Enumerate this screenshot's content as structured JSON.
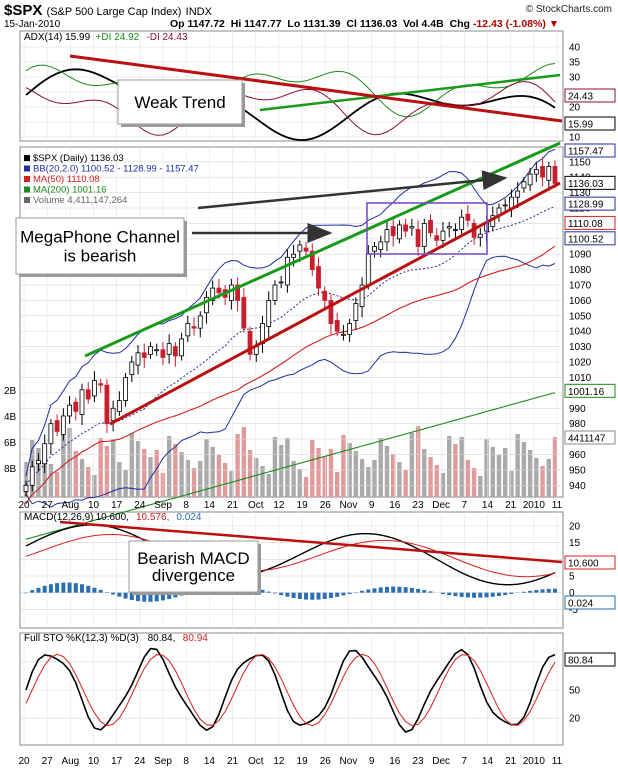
{
  "header": {
    "symbol": "$SPX",
    "name": "(S&P 500 Large Cap Index)",
    "exchange": "INDX",
    "date": "15-Jan-2010",
    "open_label": "Op",
    "open": "1147.72",
    "high_label": "Hi",
    "high": "1147.77",
    "low_label": "Lo",
    "low": "1131.39",
    "close_label": "Cl",
    "close": "1136.03",
    "vol_label": "Vol",
    "vol": "4.4B",
    "chg_label": "Chg",
    "chg": "-12.43 (-1.08%)",
    "copyright": "© StockCharts.com"
  },
  "colors": {
    "price_up": "#000000",
    "price_down": "#c81e2e",
    "bb": "#1f2fa0",
    "ma50": "#d42020",
    "ma200": "#1c8a1c",
    "volume_up": "#aaaaaa",
    "volume_down": "#e09a9a",
    "adx": "#000000",
    "pdi": "#1c8a1c",
    "mdi": "#8a1030",
    "macd": "#000000",
    "signal": "#d42020",
    "hist": "#2a6fb0",
    "trend_green": "#1a9a1a",
    "trend_red": "#bb1010",
    "annot_box": "#7a50c8"
  },
  "panels": {
    "adx": {
      "legend": "ADX(14) 15.99 +DI 24.92 -DI 24.43",
      "legend_parts": [
        "ADX(14) 15.99",
        "+DI 24.92",
        "-DI 24.43"
      ],
      "ticks": [
        "40",
        "35",
        "30",
        "25",
        "20",
        "15",
        "10"
      ],
      "value_badges": [
        "24.43",
        "15.99"
      ]
    },
    "price": {
      "legend": [
        "$SPX (Daily) 1136.03",
        "BB(20,2.0) 1100.52 - 1128.99 - 1157.47",
        "MA(50) 1110.08",
        "MA(200) 1001.16",
        "Volume 4,411,147,264"
      ],
      "ticks": [
        "1150",
        "1140",
        "1130",
        "1120",
        "1110",
        "1100",
        "1090",
        "1080",
        "1070",
        "1060",
        "1050",
        "1040",
        "1030",
        "1020",
        "1010",
        "1000",
        "990",
        "980",
        "970",
        "960",
        "950",
        "940"
      ],
      "value_badges": [
        "1157.47",
        "1136.03",
        "1128.99",
        "1110.08",
        "1100.52",
        "1001.16",
        "4411147"
      ],
      "volume_ticks": [
        "8B",
        "6B",
        "4B",
        "2B"
      ]
    },
    "macd": {
      "legend": "MACD(12,26,9) 10.600, 10.576, 0.024",
      "legend_parts": [
        "MACD(12,26,9)",
        "10.600,",
        "10.576,",
        "0.024"
      ],
      "ticks": [
        "20",
        "15",
        "10",
        "5",
        "0",
        "-5"
      ],
      "value_badges": [
        "10.600",
        "0.024"
      ]
    },
    "sto": {
      "legend": "Full STO %K(12,3) %D(3) 80.84, 80.94",
      "legend_parts": [
        "Full STO %K(12,3) %D(3)",
        "80.84,",
        "80.94"
      ],
      "ticks": [
        "80",
        "50",
        "20"
      ],
      "value_badges": [
        "80.84"
      ]
    }
  },
  "x_axis_labels": [
    "20",
    "27",
    "Aug",
    "10",
    "17",
    "24",
    "Sep",
    "8",
    "14",
    "21",
    "Oct",
    "12",
    "19",
    "26",
    "Nov",
    "9",
    "16",
    "23",
    "Dec",
    "7",
    "14",
    "21",
    "2010",
    "11"
  ],
  "annotations": {
    "weak_trend": "Weak Trend",
    "megaphone": "MegaPhone Channel is bearish",
    "megaphone_lines": [
      "MegaPhone Channel",
      "is bearish"
    ],
    "bearish_macd": "Bearish MACD divergence",
    "bearish_macd_lines": [
      "Bearish MACD",
      "divergence"
    ]
  },
  "chart_data": {
    "type": "candlestick",
    "title": "$SPX (S&P 500 Large Cap Index) INDX",
    "period": "Daily, Jul 2009 - Jan 15 2010",
    "price_close": [
      940,
      952,
      956,
      967,
      980,
      975,
      985,
      992,
      988,
      1002,
      996,
      1008,
      1005,
      980,
      990,
      995,
      1010,
      1020,
      1026,
      1023,
      1030,
      1028,
      1023,
      1032,
      1024,
      1035,
      1045,
      1042,
      1050,
      1062,
      1068,
      1065,
      1062,
      1070,
      1060,
      1042,
      1025,
      1030,
      1045,
      1060,
      1070,
      1072,
      1088,
      1090,
      1096,
      1092,
      1080,
      1068,
      1060,
      1045,
      1040,
      1038,
      1045,
      1058,
      1070,
      1090,
      1095,
      1098,
      1106,
      1102,
      1109,
      1105,
      1108,
      1095,
      1110,
      1104,
      1099,
      1105,
      1108,
      1106,
      1114,
      1112,
      1101,
      1103,
      1110,
      1115,
      1120,
      1122,
      1127,
      1131,
      1137,
      1142,
      1145,
      1140,
      1147,
      1136
    ],
    "adx": {
      "adx": 15.99,
      "plus_di": 24.92,
      "minus_di": 24.43,
      "ylim": [
        10,
        40
      ]
    },
    "bollinger": {
      "upper": 1157.47,
      "middle": 1128.99,
      "lower": 1100.52
    },
    "ma50": 1110.08,
    "ma200": 1001.16,
    "volume": 4411147264,
    "macd": {
      "macd": 10.6,
      "signal": 10.576,
      "histogram": 0.024,
      "ylim": [
        -5,
        20
      ]
    },
    "full_sto": {
      "k": 80.84,
      "d": 80.94,
      "levels": [
        20,
        50,
        80
      ]
    },
    "price_ylim": [
      940,
      1155
    ],
    "grid": true
  }
}
